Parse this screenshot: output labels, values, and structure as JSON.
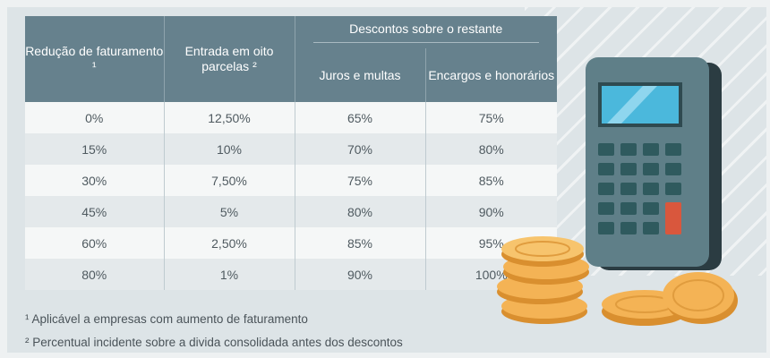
{
  "table": {
    "headers": {
      "col1": "Redução de faturamento ¹",
      "col2": "Entrada em oito parcelas ²",
      "group": "Descontos sobre o restante",
      "col3": "Juros e multas",
      "col4": "Encargos e honorários"
    },
    "rows": [
      [
        "0%",
        "12,50%",
        "65%",
        "75%"
      ],
      [
        "15%",
        "10%",
        "70%",
        "80%"
      ],
      [
        "30%",
        "7,50%",
        "75%",
        "85%"
      ],
      [
        "45%",
        "5%",
        "80%",
        "90%"
      ],
      [
        "60%",
        "2,50%",
        "85%",
        "95%"
      ],
      [
        "80%",
        "1%",
        "90%",
        "100%"
      ]
    ]
  },
  "footnotes": {
    "note1": "¹ Aplicável a empresas com aumento de faturamento",
    "note2": "² Percentual incidente sobre a divida consolidada antes dos descontos"
  },
  "illustration": {
    "items": [
      "calculator-icon",
      "coin-stack-icon"
    ],
    "colors": {
      "calculator_body": "#5f7f88",
      "screen": "#4bb8dc",
      "keys": "#2f5a5e",
      "red_key": "#d9573d",
      "coin": "#f4b355"
    }
  }
}
